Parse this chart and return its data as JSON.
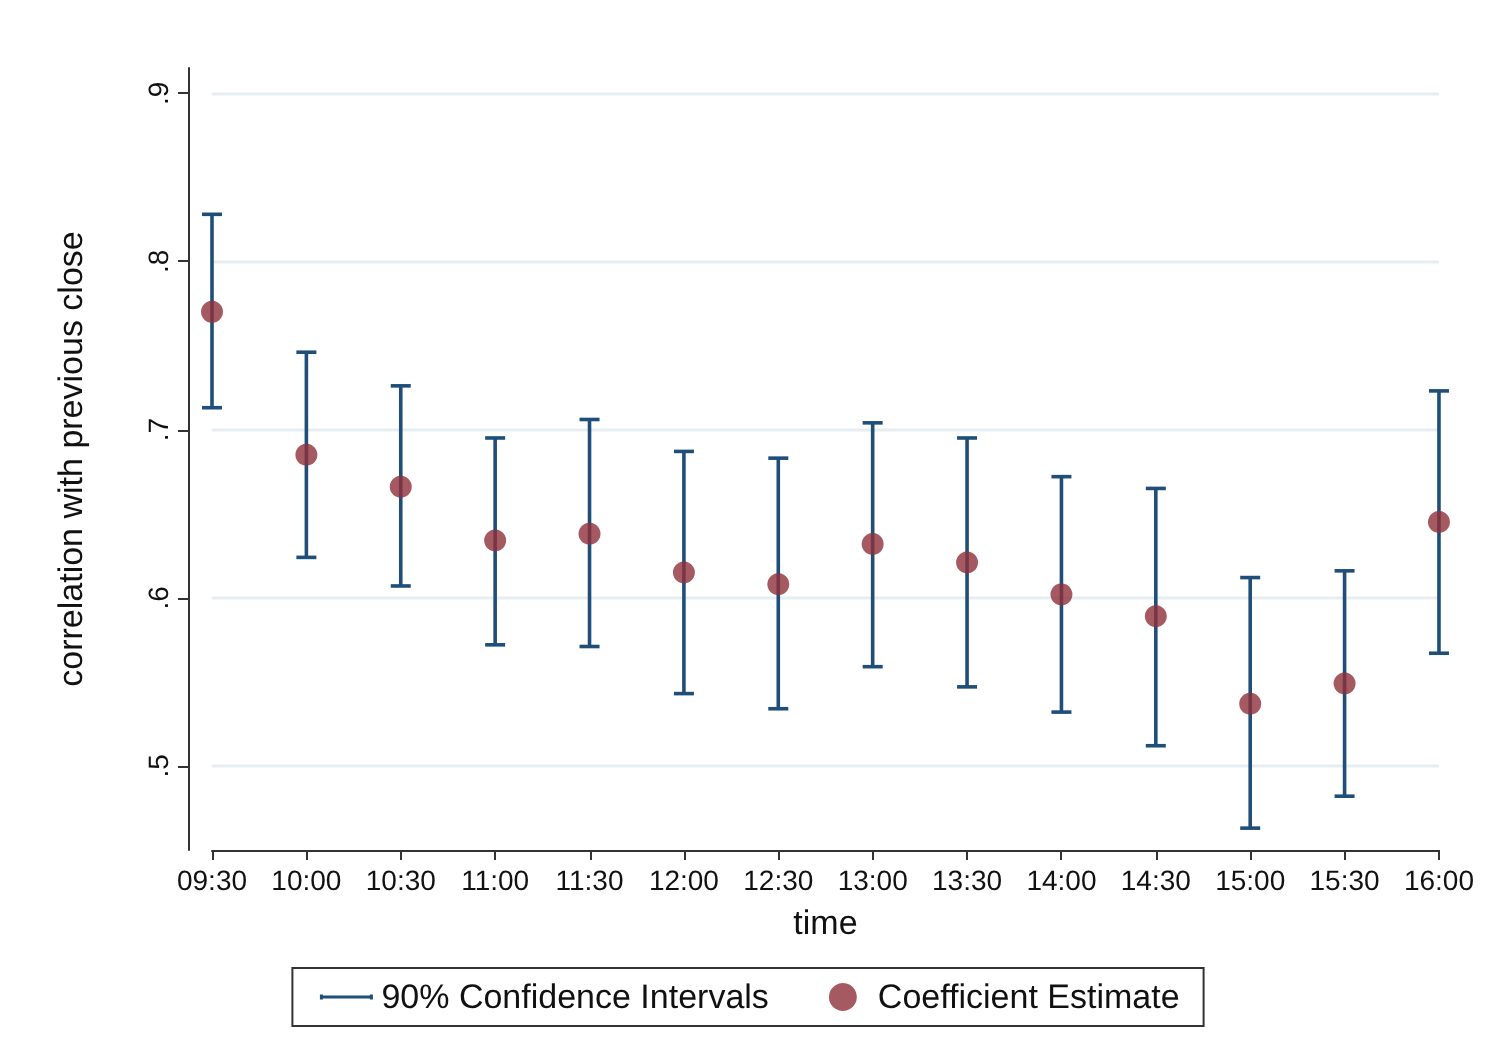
{
  "chart_data": {
    "type": "scatter",
    "xlabel": "time",
    "ylabel": "correlation with previous close",
    "annotations": [
      "90% Confidence Intervals"
    ],
    "categories": [
      "09:30",
      "10:00",
      "10:30",
      "11:00",
      "11:30",
      "12:00",
      "12:30",
      "13:00",
      "13:30",
      "14:00",
      "14:30",
      "15:00",
      "15:30",
      "16:00"
    ],
    "series": [
      {
        "name": "Coefficient Estimate",
        "color": "#8e2f38",
        "values": [
          0.77,
          0.685,
          0.666,
          0.634,
          0.638,
          0.615,
          0.608,
          0.632,
          0.621,
          0.602,
          0.589,
          0.537,
          0.549,
          0.645
        ],
        "errors": [
          [
            0.713,
            0.828
          ],
          [
            0.624,
            0.746
          ],
          [
            0.607,
            0.726
          ],
          [
            0.572,
            0.695
          ],
          [
            0.571,
            0.706
          ],
          [
            0.543,
            0.687
          ],
          [
            0.534,
            0.683
          ],
          [
            0.559,
            0.704
          ],
          [
            0.547,
            0.695
          ],
          [
            0.532,
            0.672
          ],
          [
            0.512,
            0.665
          ],
          [
            0.463,
            0.612
          ],
          [
            0.482,
            0.616
          ],
          [
            0.567,
            0.723
          ]
        ]
      }
    ],
    "ylim": [
      0.45,
      0.915
    ],
    "yticks": [
      {
        "value": 0.5,
        "label": ".5"
      },
      {
        "value": 0.6,
        "label": ".6"
      },
      {
        "value": 0.7,
        "label": ".7"
      },
      {
        "value": 0.8,
        "label": ".8"
      },
      {
        "value": 0.9,
        "label": ".9"
      }
    ],
    "grid": "y",
    "legend": "bottom",
    "marker": "circle"
  }
}
